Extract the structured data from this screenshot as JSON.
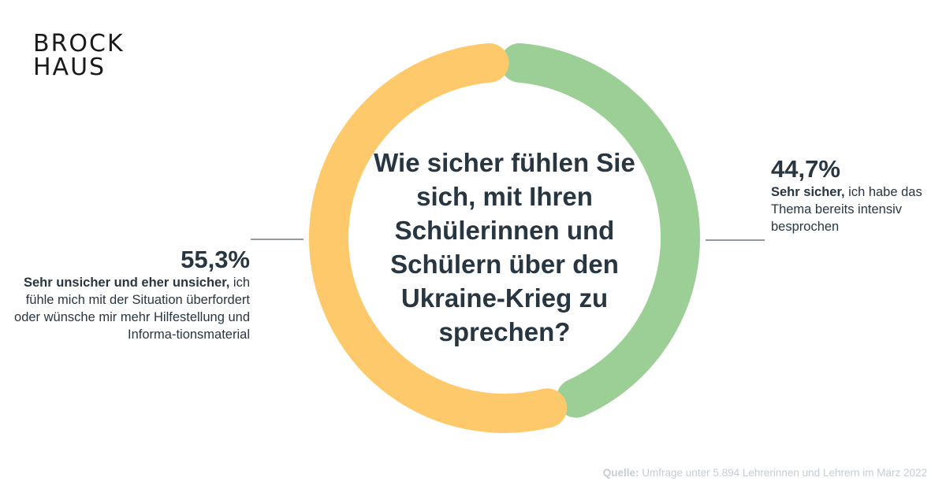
{
  "brand": {
    "logo_line1": "BROCK",
    "logo_line2": "HAUS"
  },
  "question": "Wie sicher fühlen Sie sich, mit Ihren Schülerinnen und Schülern über den Ukraine-Krieg zu sprechen?",
  "chart_data": {
    "type": "pie",
    "subtype": "donut",
    "title": "Wie sicher fühlen Sie sich, mit Ihren Schülerinnen und Schülern über den Ukraine-Krieg zu sprechen?",
    "slices": [
      {
        "label": "Sehr sicher, ich habe das Thema bereits intensiv besprochen",
        "value": 44.7,
        "value_label": "44,7%",
        "desc_bold": "Sehr sicher,",
        "desc_rest": " ich habe das Thema bereits intensiv besprochen",
        "color": "#9ccf95"
      },
      {
        "label": "Sehr unsicher und eher unsicher, ich fühle mich mit der Situation überfordert oder wünsche mir mehr Hilfestellung und Informationsmaterial",
        "value": 55.3,
        "value_label": "55,3%",
        "desc_bold": "Sehr unsicher und eher unsicher,",
        "desc_rest": " ich fühle mich mit der Situation überfordert oder wünsche mir mehr Hilfestellung und Informa-tionsmaterial",
        "color": "#fdc96a"
      }
    ]
  },
  "leader_color": "#283642",
  "source": {
    "label": "Quelle:",
    "text": " Umfrage unter 5.894 Lehrerinnen und Lehrern im März 2022"
  }
}
